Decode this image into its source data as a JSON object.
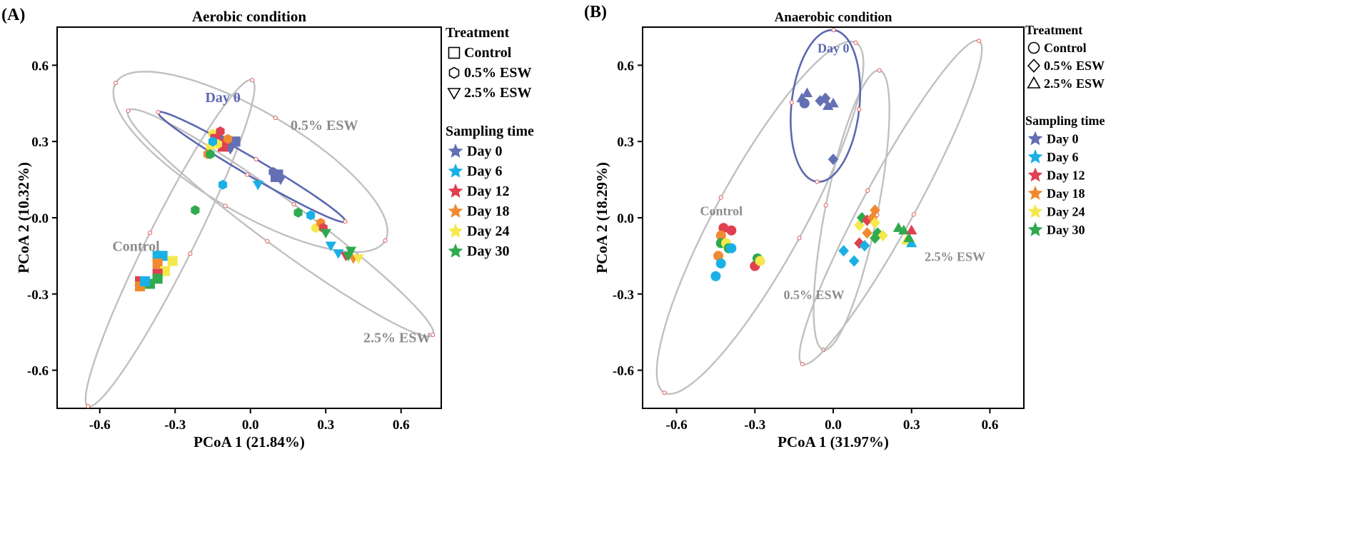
{
  "colors": {
    "day0": "#6470b4",
    "day6": "#1ab0e6",
    "day12": "#e0404f",
    "day18": "#f08a30",
    "day24": "#f5e84c",
    "day30": "#2faa4f",
    "ellipse_gray": "#c0c0c0",
    "ellipse_day0": "#5c68b0",
    "vertex": "#e06060",
    "label_gray": "#8c8c8c"
  },
  "chart_data": [
    {
      "type": "scatter",
      "panel_label": "(A)",
      "title": "Aerobic condition",
      "xlabel": "PCoA 1 (21.84%)",
      "ylabel": "PCoA 2 (10.32%)",
      "xlim": [
        -0.77,
        0.76
      ],
      "ylim": [
        -0.75,
        0.75
      ],
      "xticks": [
        -0.6,
        -0.3,
        0.0,
        0.3,
        0.6
      ],
      "yticks": [
        -0.6,
        -0.3,
        0.0,
        0.3,
        0.6
      ],
      "xtick_labels": [
        "-0.6",
        "-0.3",
        "0.0",
        "0.3",
        "0.6"
      ],
      "ytick_labels": [
        "-0.6",
        "-0.3",
        "0.0",
        "0.3",
        "0.6"
      ],
      "legend": {
        "treatment_title": "Treatment",
        "treatment": [
          {
            "shape": "square",
            "label": "Control"
          },
          {
            "shape": "hexagon",
            "label": "0.5% ESW"
          },
          {
            "shape": "tri-down",
            "label": "2.5% ESW"
          }
        ],
        "time_title": "Sampling time",
        "times": [
          {
            "color": "day0",
            "label": "Day 0"
          },
          {
            "color": "day6",
            "label": "Day 6"
          },
          {
            "color": "day12",
            "label": "Day 12"
          },
          {
            "color": "day18",
            "label": "Day 18"
          },
          {
            "color": "day24",
            "label": "Day 24"
          },
          {
            "color": "day30",
            "label": "Day 30"
          }
        ]
      },
      "ellipses": [
        {
          "name": "0.5% ESW",
          "color": "ellipse_gray",
          "cx": 0.0,
          "cy": 0.22,
          "a": 0.62,
          "b": 0.2,
          "angle": -30,
          "label": "0.5% ESW",
          "label_x": 0.16,
          "label_y": 0.345
        },
        {
          "name": "Control",
          "color": "ellipse_gray",
          "cx": -0.32,
          "cy": -0.1,
          "a": 0.72,
          "b": 0.09,
          "angle": 63,
          "label": "Control",
          "label_x": -0.55,
          "label_y": -0.13
        },
        {
          "name": "2.5% ESW",
          "color": "ellipse_gray",
          "cx": 0.12,
          "cy": -0.02,
          "a": 0.75,
          "b": 0.09,
          "angle": -36,
          "label": "2.5% ESW",
          "label_x": 0.45,
          "label_y": -0.49
        },
        {
          "name": "Day 0",
          "color": "ellipse_day0",
          "cx": 0.005,
          "cy": 0.2,
          "a": 0.43,
          "b": 0.035,
          "angle": -30,
          "label": "Day 0",
          "label_x": -0.18,
          "label_y": 0.455
        }
      ],
      "points": [
        {
          "x": -0.13,
          "y": 0.32,
          "shape": "square",
          "color": "day0"
        },
        {
          "x": -0.06,
          "y": 0.3,
          "shape": "square",
          "color": "day0"
        },
        {
          "x": -0.09,
          "y": 0.28,
          "shape": "square",
          "color": "day0"
        },
        {
          "x": -0.12,
          "y": 0.31,
          "shape": "hexagon",
          "color": "day0"
        },
        {
          "x": -0.08,
          "y": 0.27,
          "shape": "tri-down",
          "color": "day0"
        },
        {
          "x": 0.09,
          "y": 0.18,
          "shape": "hexagon",
          "color": "day0"
        },
        {
          "x": 0.1,
          "y": 0.16,
          "shape": "square",
          "color": "day0"
        },
        {
          "x": 0.12,
          "y": 0.15,
          "shape": "tri-down",
          "color": "day0"
        },
        {
          "x": 0.11,
          "y": 0.17,
          "shape": "square",
          "color": "day0"
        },
        {
          "x": -0.15,
          "y": 0.33,
          "shape": "hexagon",
          "color": "day24"
        },
        {
          "x": -0.16,
          "y": 0.28,
          "shape": "hexagon",
          "color": "day24"
        },
        {
          "x": -0.1,
          "y": 0.3,
          "shape": "hexagon",
          "color": "day12"
        },
        {
          "x": -0.11,
          "y": 0.28,
          "shape": "square",
          "color": "day12"
        },
        {
          "x": -0.12,
          "y": 0.34,
          "shape": "hexagon",
          "color": "day12"
        },
        {
          "x": -0.14,
          "y": 0.31,
          "shape": "square",
          "color": "day12"
        },
        {
          "x": -0.17,
          "y": 0.25,
          "shape": "hexagon",
          "color": "day18"
        },
        {
          "x": -0.09,
          "y": 0.31,
          "shape": "hexagon",
          "color": "day18"
        },
        {
          "x": -0.13,
          "y": 0.29,
          "shape": "hexagon",
          "color": "day24"
        },
        {
          "x": -0.16,
          "y": 0.25,
          "shape": "hexagon",
          "color": "day30"
        },
        {
          "x": -0.15,
          "y": 0.3,
          "shape": "hexagon",
          "color": "day6"
        },
        {
          "x": -0.11,
          "y": 0.13,
          "shape": "hexagon",
          "color": "day6"
        },
        {
          "x": 0.03,
          "y": 0.13,
          "shape": "tri-down",
          "color": "day6"
        },
        {
          "x": -0.22,
          "y": 0.03,
          "shape": "hexagon",
          "color": "day30"
        },
        {
          "x": 0.19,
          "y": 0.02,
          "shape": "hexagon",
          "color": "day30"
        },
        {
          "x": 0.24,
          "y": 0.01,
          "shape": "hexagon",
          "color": "day6"
        },
        {
          "x": 0.26,
          "y": -0.04,
          "shape": "hexagon",
          "color": "day24"
        },
        {
          "x": 0.28,
          "y": -0.02,
          "shape": "hexagon",
          "color": "day18"
        },
        {
          "x": 0.29,
          "y": -0.04,
          "shape": "hexagon",
          "color": "day12"
        },
        {
          "x": 0.3,
          "y": -0.06,
          "shape": "tri-down",
          "color": "day30"
        },
        {
          "x": 0.32,
          "y": -0.11,
          "shape": "tri-down",
          "color": "day6"
        },
        {
          "x": 0.35,
          "y": -0.14,
          "shape": "tri-down",
          "color": "day6"
        },
        {
          "x": 0.38,
          "y": -0.15,
          "shape": "tri-down",
          "color": "day12"
        },
        {
          "x": 0.4,
          "y": -0.13,
          "shape": "tri-down",
          "color": "day30"
        },
        {
          "x": 0.41,
          "y": -0.16,
          "shape": "tri-down",
          "color": "day18"
        },
        {
          "x": 0.43,
          "y": -0.16,
          "shape": "tri-down",
          "color": "day24"
        },
        {
          "x": 0.39,
          "y": -0.15,
          "shape": "tri-down",
          "color": "day30"
        },
        {
          "x": -0.37,
          "y": -0.15,
          "shape": "square",
          "color": "day6"
        },
        {
          "x": -0.35,
          "y": -0.15,
          "shape": "square",
          "color": "day6"
        },
        {
          "x": -0.37,
          "y": -0.18,
          "shape": "square",
          "color": "day18"
        },
        {
          "x": -0.31,
          "y": -0.17,
          "shape": "square",
          "color": "day24"
        },
        {
          "x": -0.34,
          "y": -0.21,
          "shape": "square",
          "color": "day24"
        },
        {
          "x": -0.37,
          "y": -0.22,
          "shape": "square",
          "color": "day12"
        },
        {
          "x": -0.44,
          "y": -0.25,
          "shape": "square",
          "color": "day12"
        },
        {
          "x": -0.44,
          "y": -0.27,
          "shape": "square",
          "color": "day18"
        },
        {
          "x": -0.4,
          "y": -0.26,
          "shape": "square",
          "color": "day30"
        },
        {
          "x": -0.37,
          "y": -0.24,
          "shape": "square",
          "color": "day30"
        },
        {
          "x": -0.42,
          "y": -0.25,
          "shape": "square",
          "color": "day6"
        }
      ]
    },
    {
      "type": "scatter",
      "panel_label": "(B)",
      "title": "Anaerobic condition",
      "xlabel": "PCoA 1 (31.97%)",
      "ylabel": "PCoA 2 (18.29%)",
      "xlim": [
        -0.73,
        0.73
      ],
      "ylim": [
        -0.75,
        0.75
      ],
      "xticks": [
        -0.6,
        -0.3,
        0.0,
        0.3,
        0.6
      ],
      "yticks": [
        -0.6,
        -0.3,
        0.0,
        0.3,
        0.6
      ],
      "xtick_labels": [
        "-0.6",
        "-0.3",
        "0.0",
        "0.3",
        "0.6"
      ],
      "ytick_labels": [
        "-0.6",
        "-0.3",
        "0.0",
        "0.3",
        "0.6"
      ],
      "legend": {
        "treatment_title": "Treatment",
        "treatment": [
          {
            "shape": "circle",
            "label": "Control"
          },
          {
            "shape": "diamond",
            "label": "0.5% ESW"
          },
          {
            "shape": "tri-up",
            "label": "2.5% ESW"
          }
        ],
        "time_title": "Sampling time",
        "times": [
          {
            "color": "day0",
            "label": "Day 0"
          },
          {
            "color": "day6",
            "label": "Day 6"
          },
          {
            "color": "day12",
            "label": "Day 12"
          },
          {
            "color": "day18",
            "label": "Day 18"
          },
          {
            "color": "day24",
            "label": "Day 24"
          },
          {
            "color": "day30",
            "label": "Day 30"
          }
        ]
      },
      "ellipses": [
        {
          "name": "Control",
          "color": "ellipse_gray",
          "cx": -0.28,
          "cy": -0.0,
          "a": 0.78,
          "b": 0.17,
          "angle": 62,
          "label": "Control",
          "label_x": -0.51,
          "label_y": 0.01
        },
        {
          "name": "0.5% ESW",
          "color": "ellipse_gray",
          "cx": 0.07,
          "cy": 0.03,
          "a": 0.56,
          "b": 0.1,
          "angle": 79,
          "label": "0.5% ESW",
          "label_x": -0.19,
          "label_y": -0.32
        },
        {
          "name": "2.5% ESW",
          "color": "ellipse_gray",
          "cx": 0.22,
          "cy": 0.06,
          "a": 0.72,
          "b": 0.1,
          "angle": 62,
          "label": "2.5% ESW",
          "label_x": 0.35,
          "label_y": -0.17
        },
        {
          "name": "Day 0",
          "color": "ellipse_day0",
          "cx": -0.03,
          "cy": 0.44,
          "a": 0.3,
          "b": 0.13,
          "angle": 84,
          "label": "Day 0",
          "label_x": -0.06,
          "label_y": 0.65
        }
      ],
      "points": [
        {
          "x": -0.12,
          "y": 0.47,
          "shape": "tri-up",
          "color": "day0"
        },
        {
          "x": -0.1,
          "y": 0.49,
          "shape": "tri-up",
          "color": "day0"
        },
        {
          "x": -0.11,
          "y": 0.45,
          "shape": "circle",
          "color": "day0"
        },
        {
          "x": -0.03,
          "y": 0.47,
          "shape": "diamond",
          "color": "day0"
        },
        {
          "x": -0.05,
          "y": 0.46,
          "shape": "diamond",
          "color": "day0"
        },
        {
          "x": -0.02,
          "y": 0.44,
          "shape": "tri-up",
          "color": "day0"
        },
        {
          "x": 0.0,
          "y": 0.45,
          "shape": "tri-up",
          "color": "day0"
        },
        {
          "x": 0.0,
          "y": 0.23,
          "shape": "diamond",
          "color": "day0"
        },
        {
          "x": -0.42,
          "y": -0.04,
          "shape": "circle",
          "color": "day12"
        },
        {
          "x": -0.39,
          "y": -0.05,
          "shape": "circle",
          "color": "day12"
        },
        {
          "x": -0.43,
          "y": -0.07,
          "shape": "circle",
          "color": "day18"
        },
        {
          "x": -0.43,
          "y": -0.1,
          "shape": "circle",
          "color": "day30"
        },
        {
          "x": -0.41,
          "y": -0.1,
          "shape": "circle",
          "color": "day24"
        },
        {
          "x": -0.4,
          "y": -0.12,
          "shape": "circle",
          "color": "day30"
        },
        {
          "x": -0.39,
          "y": -0.12,
          "shape": "circle",
          "color": "day6"
        },
        {
          "x": -0.44,
          "y": -0.15,
          "shape": "circle",
          "color": "day18"
        },
        {
          "x": -0.43,
          "y": -0.18,
          "shape": "circle",
          "color": "day6"
        },
        {
          "x": -0.45,
          "y": -0.23,
          "shape": "circle",
          "color": "day6"
        },
        {
          "x": -0.3,
          "y": -0.19,
          "shape": "circle",
          "color": "day12"
        },
        {
          "x": -0.29,
          "y": -0.16,
          "shape": "circle",
          "color": "day30"
        },
        {
          "x": -0.28,
          "y": -0.17,
          "shape": "circle",
          "color": "day24"
        },
        {
          "x": 0.04,
          "y": -0.13,
          "shape": "diamond",
          "color": "day6"
        },
        {
          "x": 0.08,
          "y": -0.17,
          "shape": "diamond",
          "color": "day6"
        },
        {
          "x": 0.1,
          "y": -0.1,
          "shape": "diamond",
          "color": "day12"
        },
        {
          "x": 0.12,
          "y": -0.11,
          "shape": "diamond",
          "color": "day6"
        },
        {
          "x": 0.1,
          "y": -0.03,
          "shape": "diamond",
          "color": "day24"
        },
        {
          "x": 0.11,
          "y": 0.0,
          "shape": "diamond",
          "color": "day30"
        },
        {
          "x": 0.13,
          "y": -0.01,
          "shape": "diamond",
          "color": "day12"
        },
        {
          "x": 0.13,
          "y": -0.06,
          "shape": "diamond",
          "color": "day18"
        },
        {
          "x": 0.16,
          "y": 0.03,
          "shape": "diamond",
          "color": "day18"
        },
        {
          "x": 0.15,
          "y": 0.0,
          "shape": "diamond",
          "color": "day18"
        },
        {
          "x": 0.16,
          "y": -0.02,
          "shape": "diamond",
          "color": "day24"
        },
        {
          "x": 0.17,
          "y": -0.06,
          "shape": "diamond",
          "color": "day30"
        },
        {
          "x": 0.19,
          "y": -0.07,
          "shape": "diamond",
          "color": "day24"
        },
        {
          "x": 0.16,
          "y": -0.08,
          "shape": "diamond",
          "color": "day30"
        },
        {
          "x": 0.25,
          "y": -0.04,
          "shape": "tri-up",
          "color": "day30"
        },
        {
          "x": 0.27,
          "y": -0.05,
          "shape": "tri-up",
          "color": "day30"
        },
        {
          "x": 0.3,
          "y": -0.05,
          "shape": "tri-up",
          "color": "day12"
        },
        {
          "x": 0.28,
          "y": -0.09,
          "shape": "tri-up",
          "color": "day24"
        },
        {
          "x": 0.3,
          "y": -0.1,
          "shape": "tri-up",
          "color": "day6"
        },
        {
          "x": 0.29,
          "y": -0.08,
          "shape": "tri-up",
          "color": "day30"
        }
      ]
    }
  ]
}
